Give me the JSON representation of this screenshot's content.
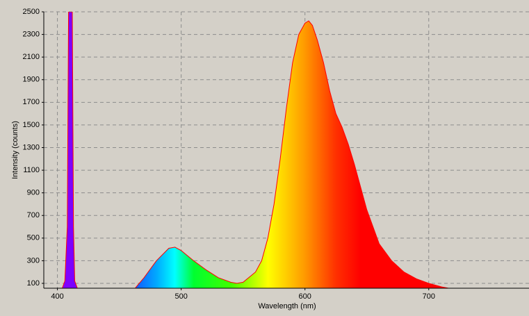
{
  "chart_data": {
    "type": "area",
    "x_label": "Wavelength (nm)",
    "y_label": "Intensity (counts)",
    "x": [
      404,
      406,
      408,
      409,
      410,
      411,
      412,
      413,
      414,
      416,
      430,
      463,
      470,
      480,
      490,
      495,
      500,
      510,
      520,
      530,
      540,
      545,
      550,
      560,
      565,
      570,
      575,
      580,
      585,
      590,
      595,
      600,
      603,
      606,
      610,
      615,
      620,
      625,
      630,
      635,
      640,
      645,
      650,
      655,
      660,
      670,
      680,
      690,
      700,
      710,
      716
    ],
    "series": [
      {
        "name": "Intensity",
        "color": "#ff0000",
        "values": [
          60,
          120,
          600,
          2500,
          2500,
          2500,
          2500,
          600,
          120,
          60,
          null,
          60,
          150,
          300,
          410,
          420,
          390,
          300,
          220,
          150,
          110,
          100,
          110,
          200,
          300,
          500,
          800,
          1200,
          1650,
          2050,
          2300,
          2400,
          2420,
          2380,
          2250,
          2050,
          1800,
          1600,
          1480,
          1330,
          1150,
          950,
          750,
          600,
          450,
          300,
          200,
          140,
          100,
          70,
          57
        ]
      }
    ],
    "xlim": [
      389,
      781
    ],
    "ylim": [
      57,
      2500
    ],
    "xticks": [
      400,
      500,
      600,
      700
    ],
    "yticks": [
      100,
      300,
      500,
      700,
      900,
      1100,
      1300,
      1500,
      1700,
      1900,
      2100,
      2300,
      2500
    ],
    "grid": true
  }
}
